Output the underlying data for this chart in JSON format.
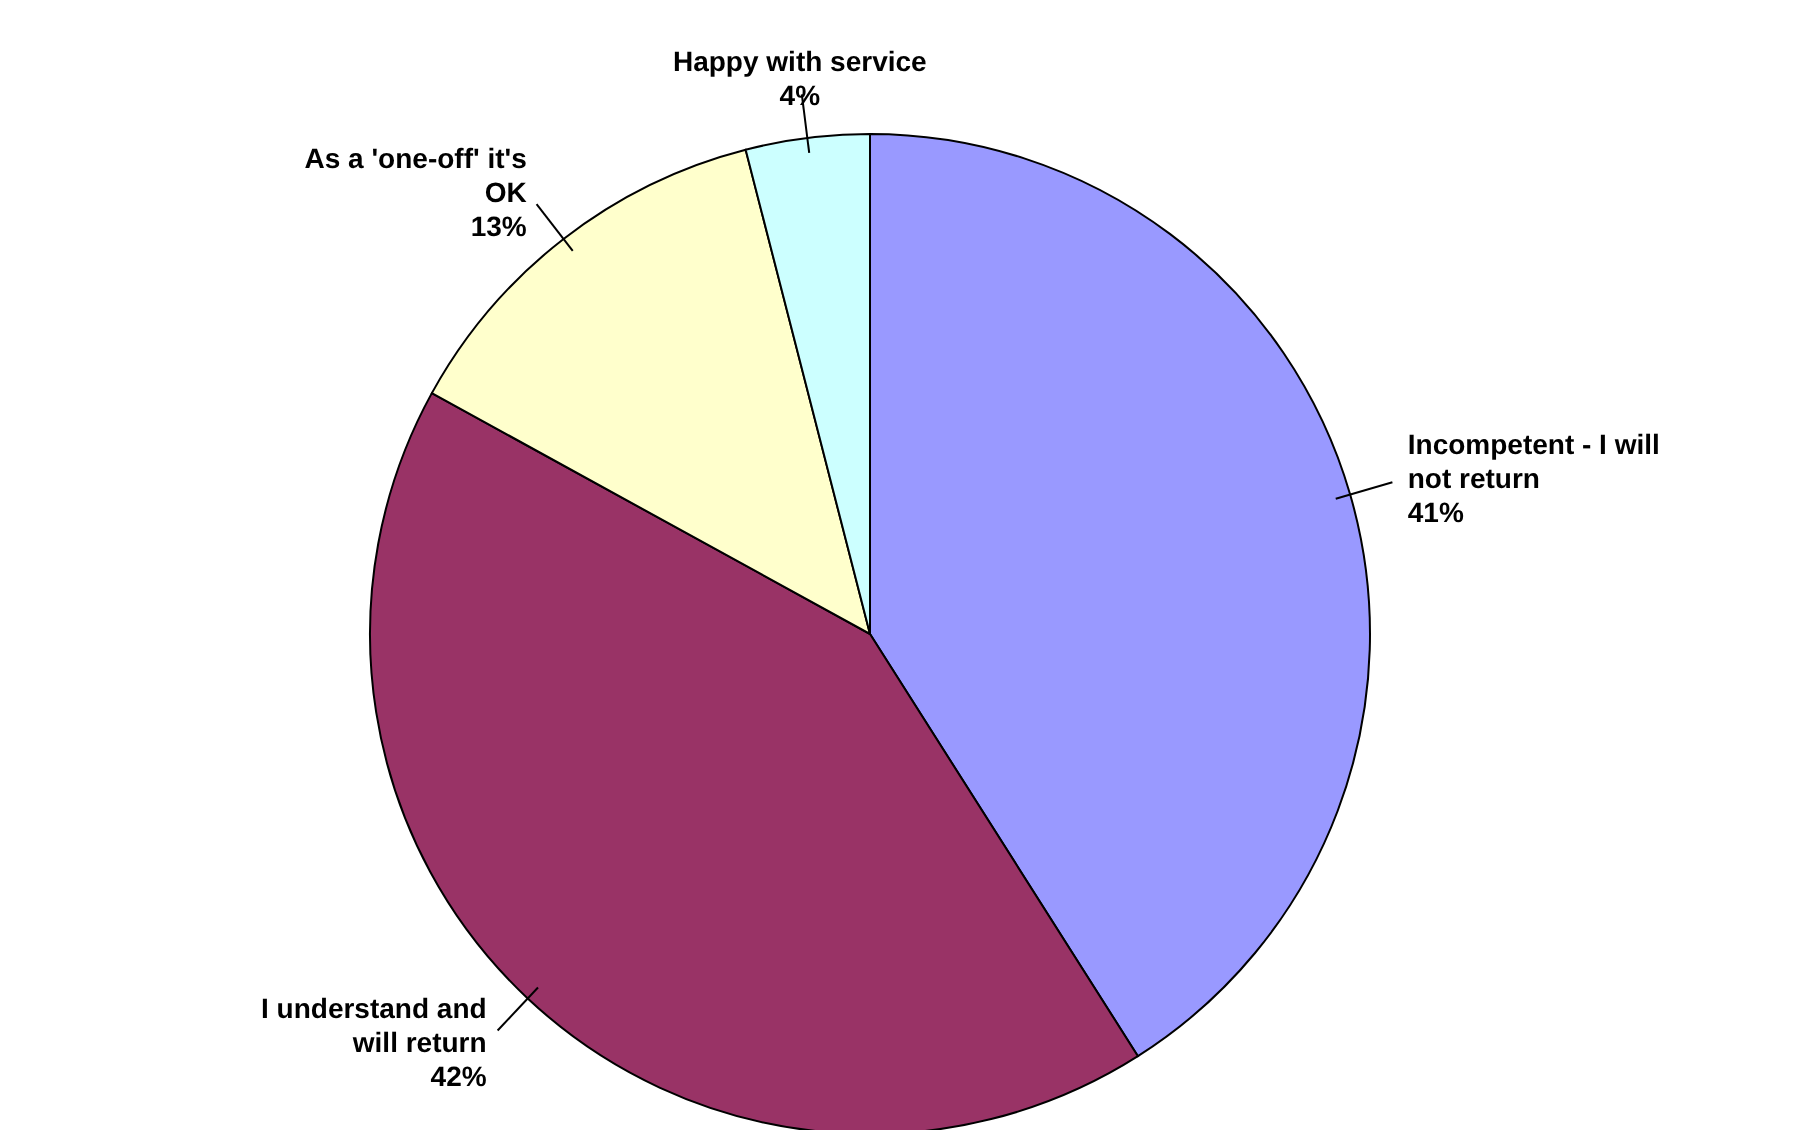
{
  "chart_data": {
    "type": "pie",
    "categories": [
      "Incompetent - I will not return",
      "I understand and will return",
      "As a 'one-off' it's OK",
      "Happy with service"
    ],
    "values": [
      41,
      42,
      13,
      4
    ],
    "value_labels": [
      "41%",
      "42%",
      "13%",
      "4%"
    ],
    "colors": [
      "#9999ff",
      "#993366",
      "#ffffcc",
      "#ccffff"
    ],
    "legend": false
  }
}
